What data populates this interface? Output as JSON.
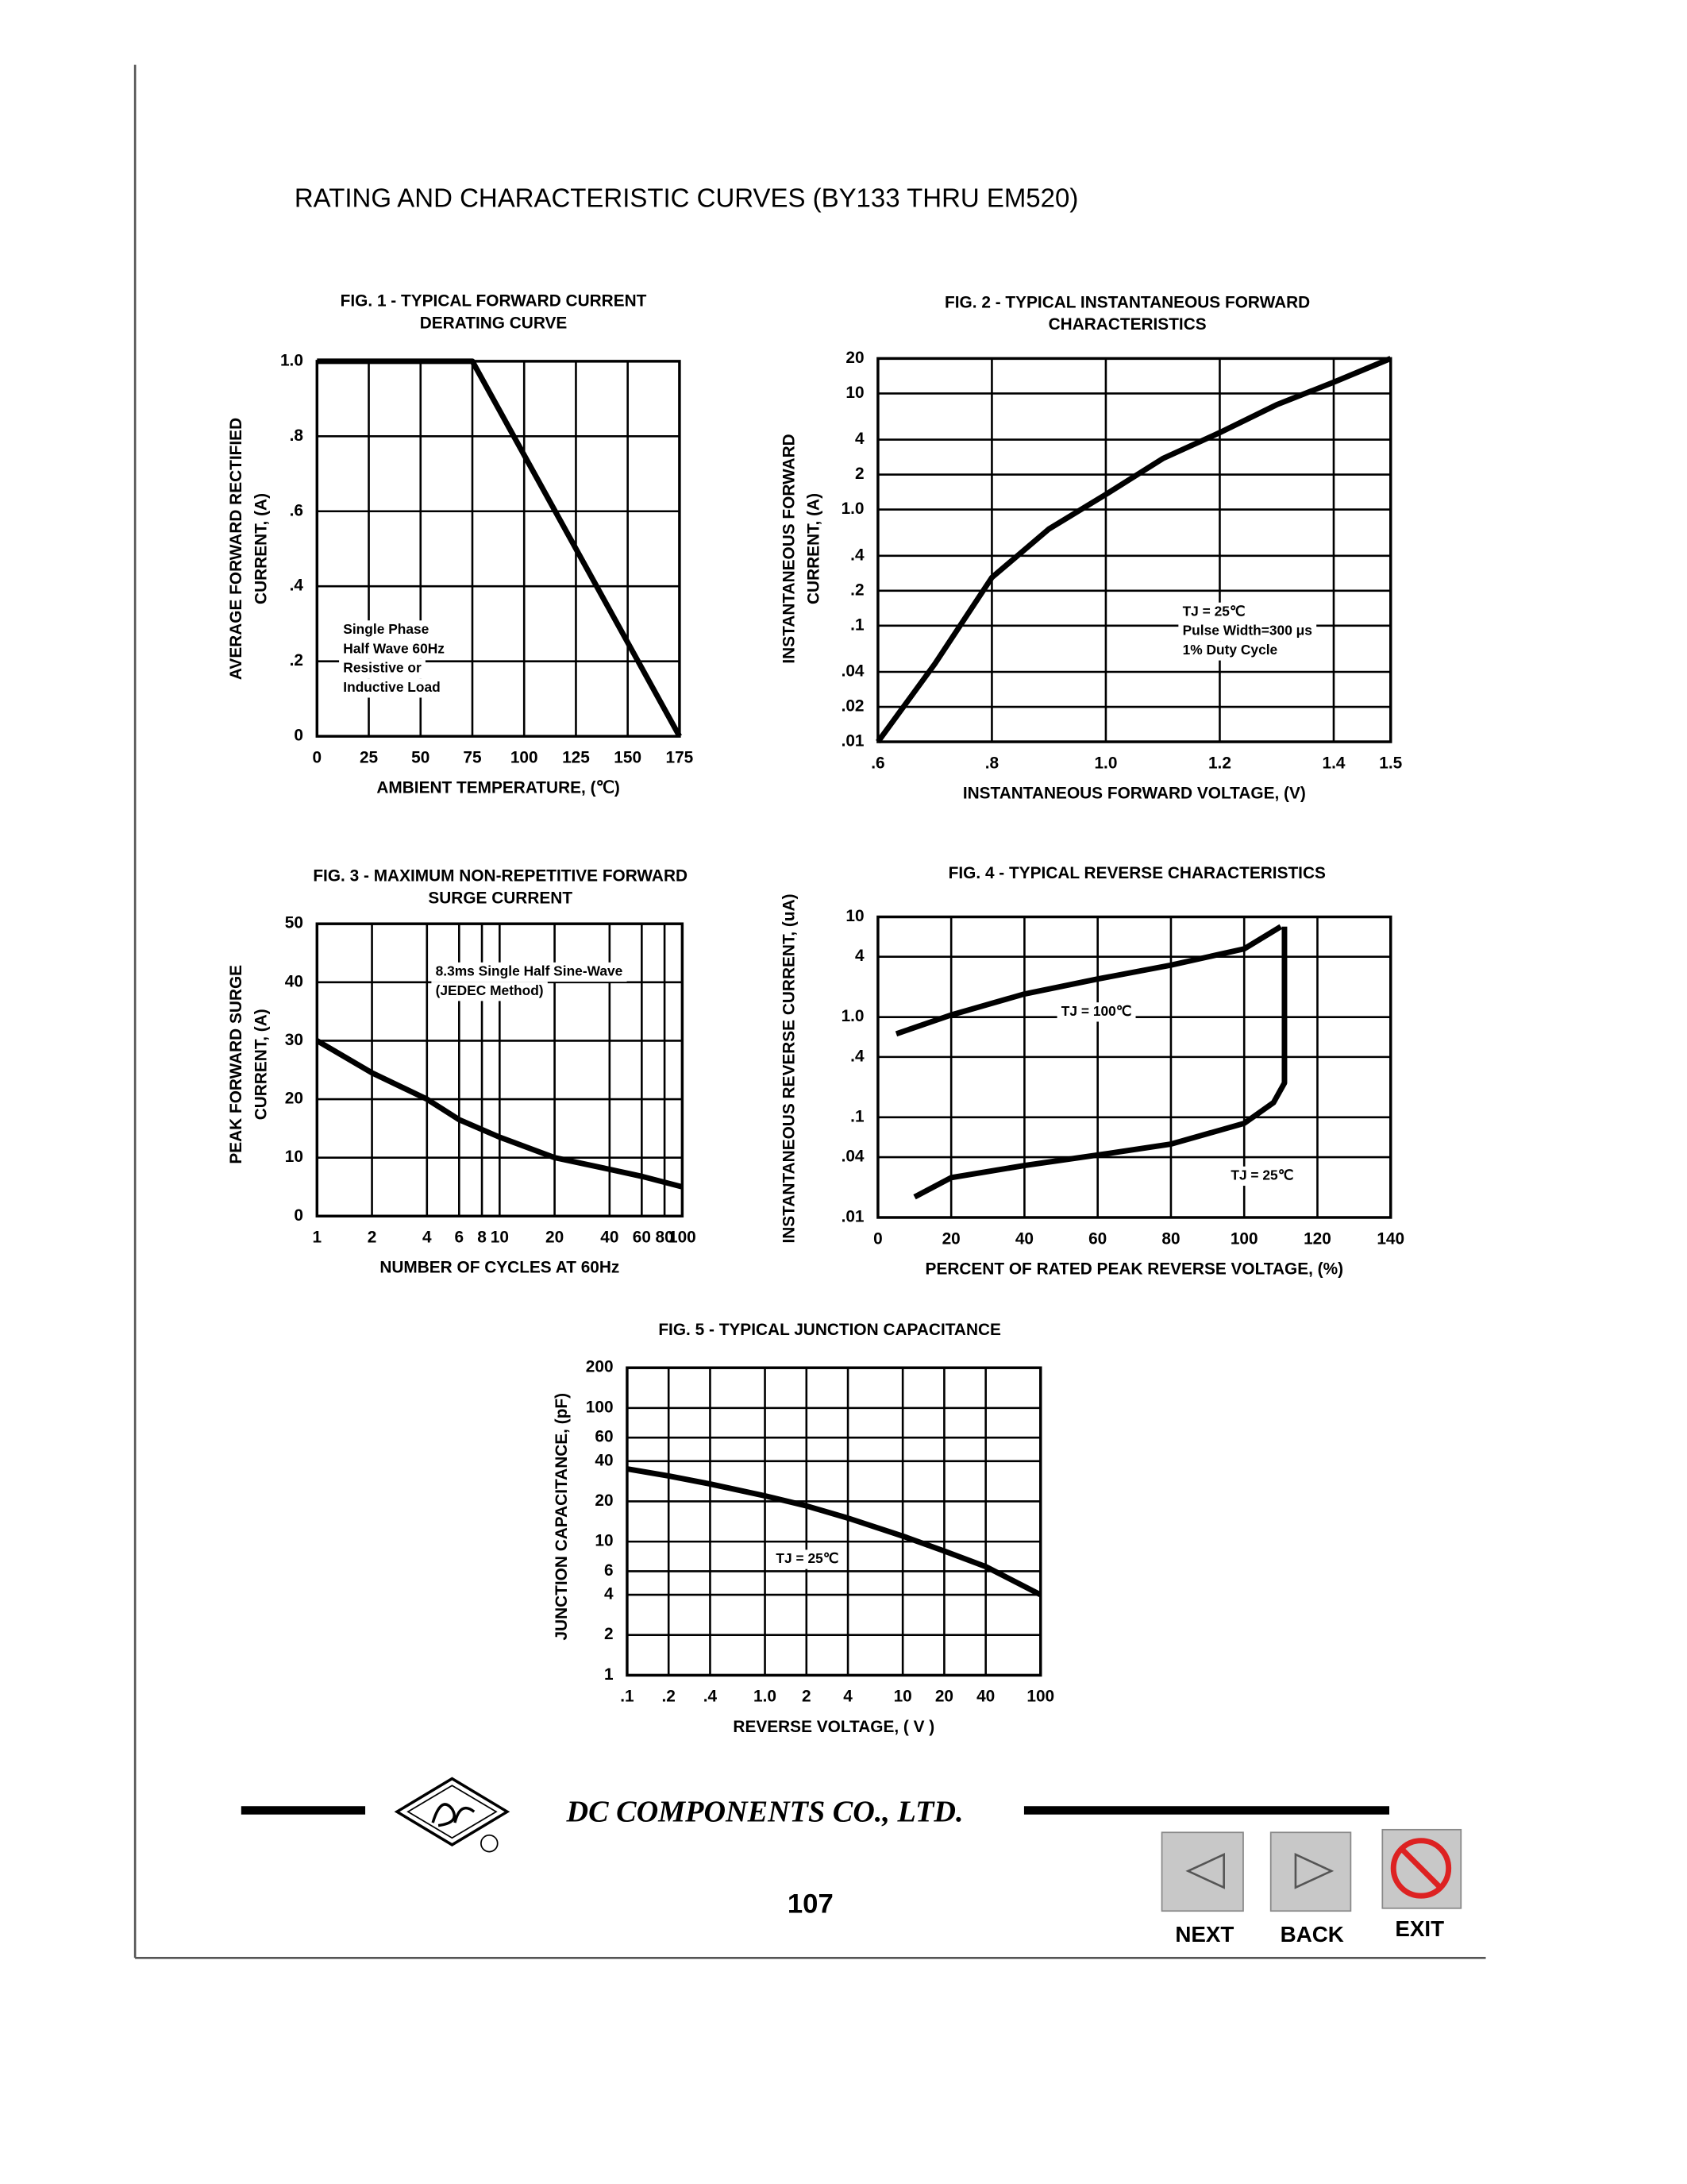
{
  "header": {
    "title": "RATING AND CHARACTERISTIC CURVES (BY133 THRU EM520)"
  },
  "chart_data": [
    {
      "type": "line",
      "title": [
        "FIG. 1 - TYPICAL FORWARD CURRENT",
        "DERATING CURVE"
      ],
      "y_label": [
        "AVERAGE FORWARD RECTIFIED",
        "CURRENT, (A)"
      ],
      "x_label": "AMBIENT TEMPERATURE, (℃)",
      "annotation": [
        "Single Phase",
        "Half Wave 60Hz",
        "Resistive or",
        "Inductive Load"
      ],
      "x": [
        0,
        75,
        175
      ],
      "values": [
        1,
        1,
        0
      ],
      "color": "#000000",
      "xlim": [
        0,
        175
      ],
      "xticks": [
        0,
        25,
        50,
        75,
        100,
        125,
        150,
        175
      ],
      "ylim": [
        0,
        1
      ],
      "yticks": [
        0,
        {
          "value": 0.2,
          "label": ".2"
        },
        {
          "value": 0.4,
          "label": ".4"
        },
        {
          "value": 0.6,
          "label": ".6"
        },
        {
          "value": 0.8,
          "label": ".8"
        },
        {
          "value": 1,
          "label": "1.0"
        }
      ],
      "grid": true
    },
    {
      "type": "line",
      "title": [
        "FIG. 2 - TYPICAL INSTANTANEOUS FORWARD",
        "CHARACTERISTICS"
      ],
      "y_label": [
        "INSTANTANEOUS FORWARD",
        "CURRENT, (A)"
      ],
      "x_label": "INSTANTANEOUS FORWARD VOLTAGE, (V)",
      "annotation": [
        "TJ = 25℃",
        "Pulse Width=300 μs",
        "1% Duty Cycle"
      ],
      "x": [
        0.6,
        0.7,
        0.8,
        0.9,
        1.0,
        1.1,
        1.2,
        1.3,
        1.4,
        1.5
      ],
      "values": [
        0.01,
        0.047,
        0.26,
        0.68,
        1.35,
        2.75,
        4.6,
        8,
        12.5,
        20
      ],
      "color": "#000000",
      "xlim": [
        0.6,
        1.5
      ],
      "xticks": [
        {
          "value": 0.6,
          "label": ".6"
        },
        {
          "value": 0.8,
          "label": ".8"
        },
        {
          "value": 1,
          "label": "1.0"
        },
        1.2,
        1.4,
        1.5
      ],
      "ylim": [
        0.01,
        20
      ],
      "yscale": "log",
      "yticks": [
        {
          "value": 0.01,
          "label": ".01"
        },
        {
          "value": 0.02,
          "label": ".02"
        },
        {
          "value": 0.04,
          "label": ".04"
        },
        {
          "value": 0.1,
          "label": ".1"
        },
        {
          "value": 0.2,
          "label": ".2"
        },
        {
          "value": 0.4,
          "label": ".4"
        },
        {
          "value": 1,
          "label": "1.0"
        },
        2,
        4,
        10,
        20
      ],
      "grid": true
    },
    {
      "type": "line",
      "title": [
        "FIG. 3 - MAXIMUM NON-REPETITIVE FORWARD",
        "SURGE CURRENT"
      ],
      "y_label": [
        "PEAK FORWARD SURGE",
        "CURRENT, (A)"
      ],
      "x_label": "NUMBER OF CYCLES AT 60Hz",
      "annotation": [
        "8.3ms Single Half Sine-Wave",
        "(JEDEC Method)"
      ],
      "x": [
        1,
        2,
        4,
        6,
        10,
        20,
        40,
        60,
        100
      ],
      "values": [
        30,
        24.5,
        20,
        16.5,
        13.5,
        10,
        8,
        6.8,
        5
      ],
      "color": "#000000",
      "xlim": [
        1,
        100
      ],
      "xscale": "log",
      "xticks": [
        1,
        2,
        4,
        6,
        8,
        10,
        20,
        40,
        60,
        80,
        100
      ],
      "ylim": [
        0,
        50
      ],
      "yticks": [
        0,
        10,
        20,
        30,
        40,
        50
      ],
      "grid": true
    },
    {
      "type": "line",
      "title": [
        "FIG. 4 - TYPICAL REVERSE CHARACTERISTICS"
      ],
      "y_label": [
        "INSTANTANEOUS REVERSE CURRENT, (uA)"
      ],
      "x_label": "PERCENT OF RATED PEAK REVERSE VOLTAGE, (%)",
      "series": [
        {
          "name": "TJ = 100℃",
          "color": "#000000",
          "x": [
            5,
            20,
            40,
            60,
            80,
            100,
            110
          ],
          "values": [
            0.68,
            1.05,
            1.7,
            2.4,
            3.3,
            4.8,
            8
          ]
        },
        {
          "name": "TJ = 25℃",
          "color": "#000000",
          "x": [
            10,
            20,
            40,
            60,
            80,
            100,
            108,
            111,
            111
          ],
          "values": [
            0.016,
            0.025,
            0.033,
            0.042,
            0.054,
            0.087,
            0.14,
            0.22,
            8
          ]
        }
      ],
      "xlim": [
        0,
        140
      ],
      "xticks": [
        0,
        20,
        40,
        60,
        80,
        100,
        120,
        140
      ],
      "ylim": [
        0.01,
        10
      ],
      "yscale": "log",
      "yticks": [
        {
          "value": 0.01,
          "label": ".01"
        },
        {
          "value": 0.04,
          "label": ".04"
        },
        {
          "value": 0.1,
          "label": ".1"
        },
        {
          "value": 0.4,
          "label": ".4"
        },
        {
          "value": 1,
          "label": "1.0"
        },
        4,
        10
      ],
      "grid": true
    },
    {
      "type": "line",
      "title": [
        "FIG. 5 - TYPICAL JUNCTION CAPACITANCE"
      ],
      "y_label": [
        "JUNCTION CAPACITANCE, (pF)"
      ],
      "x_label": "REVERSE VOLTAGE, ( V )",
      "annotation": [
        "TJ = 25℃"
      ],
      "x": [
        0.1,
        0.2,
        0.4,
        1,
        2,
        4,
        10,
        20,
        40,
        100
      ],
      "values": [
        35,
        31,
        27,
        22,
        18.5,
        15,
        11,
        8.5,
        6.5,
        4
      ],
      "color": "#000000",
      "xlim": [
        0.1,
        100
      ],
      "xscale": "log",
      "xticks": [
        {
          "value": 0.1,
          "label": ".1"
        },
        {
          "value": 0.2,
          "label": ".2"
        },
        {
          "value": 0.4,
          "label": ".4"
        },
        {
          "value": 1,
          "label": "1.0"
        },
        2,
        4,
        10,
        20,
        40,
        100
      ],
      "ylim": [
        1,
        200
      ],
      "yscale": "log",
      "yticks": [
        1,
        2,
        4,
        6,
        10,
        20,
        40,
        60,
        100,
        200
      ],
      "grid": true
    }
  ],
  "footer": {
    "company": "DC COMPONENTS CO.,  LTD.",
    "page": "107",
    "buttons": [
      "NEXT",
      "BACK",
      "EXIT"
    ]
  }
}
